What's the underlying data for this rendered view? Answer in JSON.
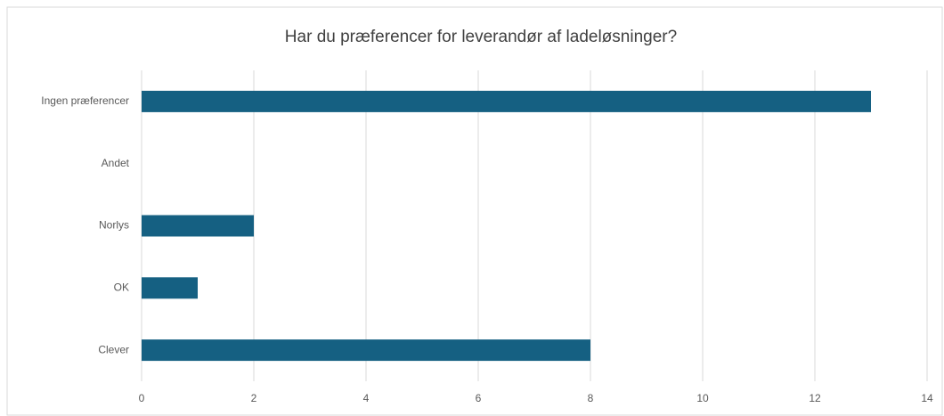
{
  "chart_data": {
    "type": "barh",
    "title": "Har du præferencer for leverandør af ladeløsninger?",
    "categories": [
      "Ingen præferencer",
      "Andet",
      "Norlys",
      "OK",
      "Clever"
    ],
    "values": [
      13,
      0,
      2,
      1,
      8
    ],
    "color": "#156082",
    "xlim": [
      0,
      14
    ],
    "xticks": [
      0,
      2,
      4,
      6,
      8,
      10,
      12,
      14
    ],
    "grid": true
  }
}
